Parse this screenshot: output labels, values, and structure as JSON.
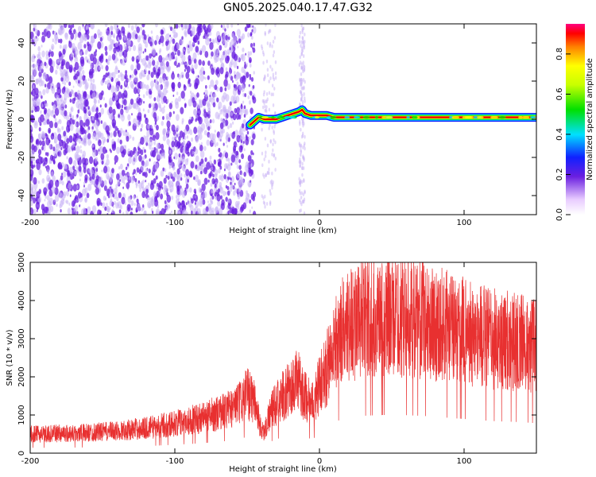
{
  "title": "GN05.2025.040.17.47.G32",
  "colors": {
    "snr_line": "#e83030",
    "ridge_core": "#e80000",
    "scatter_purple": "#6a1fe0",
    "scatter_light": "#c9b3f5"
  },
  "chart_data": [
    {
      "type": "heatmap",
      "xlabel": "Height of straight line (km)",
      "ylabel": "Frequency (Hz)",
      "xlim": [
        -200,
        150
      ],
      "ylim": [
        -50,
        50
      ],
      "xticks": [
        -200,
        -100,
        0,
        100
      ],
      "yticks": [
        -40,
        -20,
        0,
        20,
        40
      ],
      "grid": false,
      "colorbar": {
        "label": "Normalized spectral amplitude",
        "range": [
          0,
          0.95
        ],
        "ticks": [
          "0.0",
          "0.2",
          "0.4",
          "0.6",
          "0.8"
        ],
        "colormap": "rainbow"
      },
      "ridge": {
        "x": [
          -48,
          -45,
          -42,
          -38,
          -34,
          -30,
          -26,
          -22,
          -18,
          -14,
          -12,
          -10,
          -6,
          -2,
          0,
          5,
          10,
          20,
          40,
          60,
          80,
          100,
          120,
          150
        ],
        "frequency": [
          -3,
          -1,
          1,
          0,
          0,
          0,
          1,
          2,
          3,
          4,
          5,
          3,
          2,
          2,
          2,
          2,
          1,
          1,
          1,
          1,
          1,
          1,
          1,
          1
        ]
      }
    },
    {
      "type": "line",
      "xlabel": "Height of straight line (km)",
      "ylabel": "SNR (10 * v/v)",
      "xlim": [
        -200,
        150
      ],
      "ylim": [
        0,
        5000
      ],
      "xticks": [
        -200,
        -100,
        0,
        100
      ],
      "yticks": [
        0,
        1000,
        2000,
        3000,
        4000,
        5000
      ],
      "grid": false,
      "series": [
        {
          "x": [
            -200,
            -190,
            -180,
            -170,
            -160,
            -150,
            -140,
            -130,
            -120,
            -110,
            -100,
            -90,
            -80,
            -70,
            -60,
            -55,
            -50,
            -45,
            -42,
            -40,
            -38,
            -35,
            -30,
            -25,
            -20,
            -15,
            -10,
            -5,
            0,
            5,
            10,
            15,
            20,
            30,
            40,
            50,
            60,
            70,
            80,
            90,
            100,
            110,
            120,
            130,
            140,
            150
          ],
          "y": [
            500,
            500,
            520,
            520,
            540,
            560,
            580,
            620,
            660,
            720,
            780,
            850,
            950,
            1050,
            1200,
            1300,
            1550,
            1400,
            900,
            600,
            550,
            1000,
            1300,
            1500,
            1700,
            1900,
            1500,
            1300,
            1800,
            2200,
            2800,
            3200,
            3400,
            3500,
            3550,
            3600,
            3550,
            3500,
            3400,
            3300,
            3200,
            3100,
            3000,
            2950,
            2900,
            2800
          ]
        }
      ]
    }
  ]
}
